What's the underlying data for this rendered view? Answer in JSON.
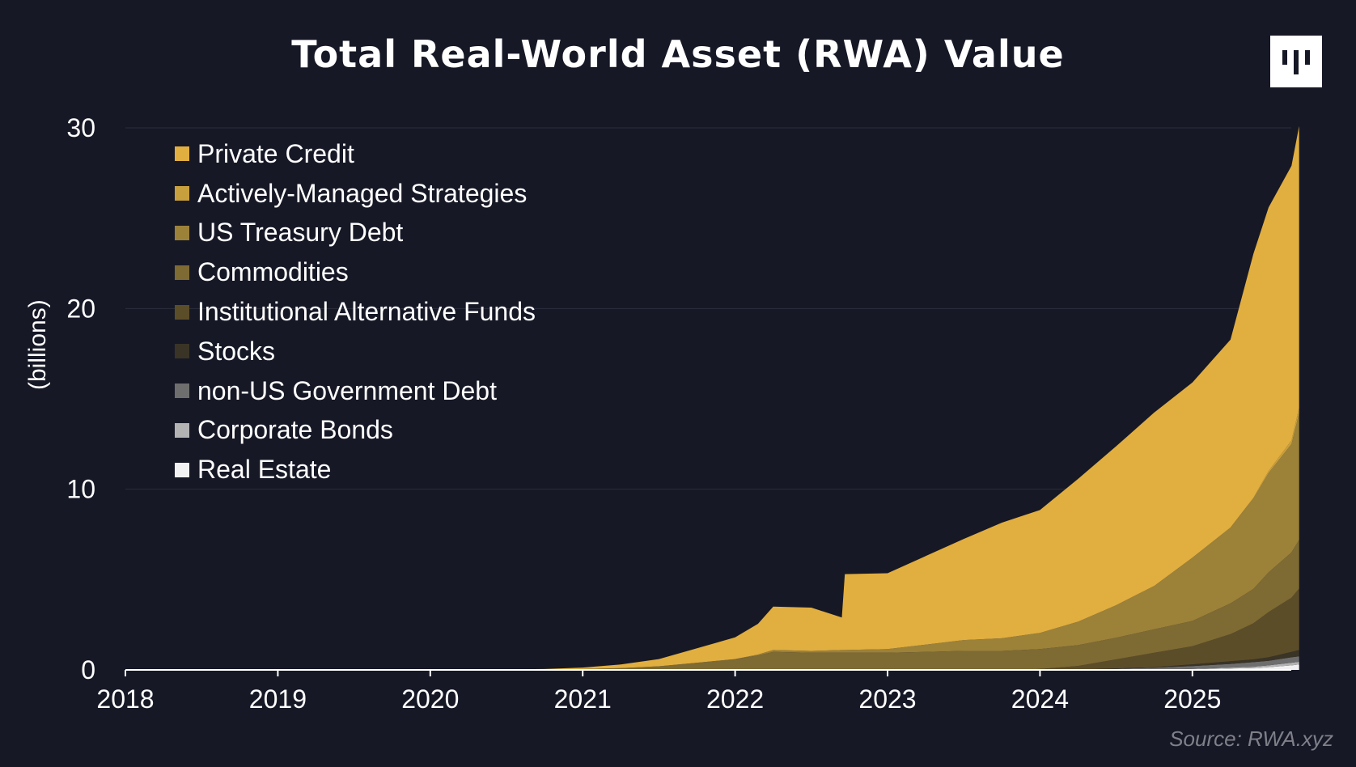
{
  "chart_data": {
    "type": "area",
    "stacked": true,
    "title": "Total Real-World Asset (RWA) Value",
    "ylabel": "(billions)",
    "xlabel": "",
    "ylim": [
      0,
      30
    ],
    "yticks": [
      "0",
      "10",
      "20",
      "30"
    ],
    "xlim": [
      2018,
      2025.7
    ],
    "xticks": [
      "2018",
      "2019",
      "2020",
      "2021",
      "2022",
      "2023",
      "2024",
      "2025"
    ],
    "grid": true,
    "legend_position": "top-left",
    "source": "Source: RWA.xyz",
    "x": [
      2018.0,
      2020.3,
      2020.75,
      2021.0,
      2021.25,
      2021.5,
      2021.75,
      2022.0,
      2022.15,
      2022.25,
      2022.5,
      2022.7,
      2022.72,
      2023.0,
      2023.25,
      2023.5,
      2023.75,
      2024.0,
      2024.25,
      2024.5,
      2024.75,
      2025.0,
      2025.25,
      2025.4,
      2025.5,
      2025.65,
      2025.7
    ],
    "series": [
      {
        "name": "Real Estate",
        "color": "#f2f2f2",
        "values": [
          0,
          0,
          0,
          0,
          0,
          0,
          0,
          0,
          0,
          0,
          0,
          0,
          0,
          0,
          0,
          0,
          0,
          0,
          0,
          0.01,
          0.02,
          0.03,
          0.08,
          0.1,
          0.15,
          0.25,
          0.3
        ]
      },
      {
        "name": "Corporate Bonds",
        "color": "#b3b3b3",
        "values": [
          0,
          0,
          0,
          0,
          0,
          0,
          0,
          0,
          0,
          0,
          0,
          0,
          0,
          0,
          0,
          0,
          0,
          0,
          0,
          0,
          0,
          0.03,
          0.05,
          0.08,
          0.1,
          0.15,
          0.15
        ]
      },
      {
        "name": "non-US Government Debt",
        "color": "#6e6e6e",
        "values": [
          0,
          0,
          0,
          0,
          0,
          0,
          0,
          0,
          0,
          0,
          0,
          0,
          0,
          0,
          0,
          0,
          0,
          0,
          0.01,
          0.05,
          0.1,
          0.15,
          0.2,
          0.25,
          0.25,
          0.3,
          0.3
        ]
      },
      {
        "name": "Stocks",
        "color": "#3a3426",
        "values": [
          0,
          0,
          0,
          0,
          0,
          0,
          0,
          0,
          0,
          0,
          0,
          0,
          0,
          0,
          0,
          0,
          0,
          0,
          0.01,
          0.02,
          0.03,
          0.1,
          0.15,
          0.15,
          0.2,
          0.3,
          0.35
        ]
      },
      {
        "name": "Institutional Alternative Funds",
        "color": "#5c4d29",
        "values": [
          0,
          0,
          0,
          0,
          0,
          0,
          0,
          0,
          0,
          0,
          0,
          0,
          0,
          0,
          0,
          0,
          0,
          0.05,
          0.2,
          0.5,
          0.8,
          1.0,
          1.5,
          2.0,
          2.5,
          3.0,
          3.4
        ]
      },
      {
        "name": "Commodities",
        "color": "#7e6a33",
        "values": [
          0,
          0.01,
          0.02,
          0.05,
          0.1,
          0.2,
          0.4,
          0.6,
          0.8,
          1.0,
          0.95,
          0.95,
          0.95,
          0.95,
          1.0,
          1.05,
          1.05,
          1.1,
          1.15,
          1.2,
          1.3,
          1.4,
          1.7,
          1.9,
          2.2,
          2.5,
          2.7
        ]
      },
      {
        "name": "US Treasury Debt",
        "color": "#9c8139",
        "values": [
          0,
          0,
          0,
          0,
          0,
          0,
          0,
          0,
          0.05,
          0.1,
          0.1,
          0.15,
          0.15,
          0.2,
          0.4,
          0.6,
          0.7,
          0.9,
          1.3,
          1.8,
          2.4,
          3.5,
          4.2,
          5.0,
          5.5,
          6.0,
          7.0
        ]
      },
      {
        "name": "Actively-Managed Strategies",
        "color": "#c89f3d",
        "values": [
          0,
          0,
          0,
          0,
          0,
          0,
          0,
          0,
          0,
          0,
          0,
          0,
          0,
          0,
          0,
          0,
          0,
          0,
          0,
          0,
          0,
          0,
          0,
          0.05,
          0.1,
          0.2,
          0.3
        ]
      },
      {
        "name": "Private Credit",
        "color": "#e1ae40",
        "values": [
          0,
          0,
          0.03,
          0.08,
          0.2,
          0.4,
          0.8,
          1.2,
          1.7,
          2.4,
          2.4,
          1.8,
          4.2,
          4.2,
          4.9,
          5.6,
          6.4,
          6.8,
          7.9,
          8.8,
          9.6,
          9.7,
          10.4,
          13.5,
          14.6,
          15.2,
          15.6
        ]
      }
    ]
  }
}
